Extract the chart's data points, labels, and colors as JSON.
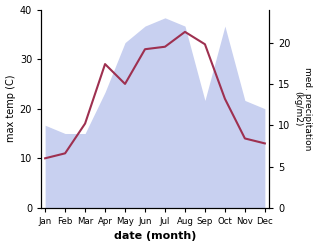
{
  "months": [
    "Jan",
    "Feb",
    "Mar",
    "Apr",
    "May",
    "Jun",
    "Jul",
    "Aug",
    "Sep",
    "Oct",
    "Nov",
    "Dec"
  ],
  "month_positions": [
    0,
    1,
    2,
    3,
    4,
    5,
    6,
    7,
    8,
    9,
    10,
    11
  ],
  "max_temp": [
    10.0,
    11.0,
    17.0,
    29.0,
    25.0,
    32.0,
    32.5,
    35.5,
    33.0,
    22.0,
    14.0,
    13.0
  ],
  "precipitation": [
    10.0,
    9.0,
    9.0,
    14.0,
    20.0,
    22.0,
    23.0,
    22.0,
    13.0,
    22.0,
    13.0,
    12.0
  ],
  "temp_color": "#9e3050",
  "precip_fill_color": "#c8d0f0",
  "left_ylabel": "max temp (C)",
  "right_ylabel": "med. precipitation\n(kg/m2)",
  "xlabel": "date (month)",
  "ylim_left": [
    0,
    40
  ],
  "ylim_right": [
    0,
    24
  ],
  "right_yticks": [
    0,
    5,
    10,
    15,
    20
  ],
  "left_yticks": [
    0,
    10,
    20,
    30,
    40
  ],
  "bg_color": "#ffffff"
}
